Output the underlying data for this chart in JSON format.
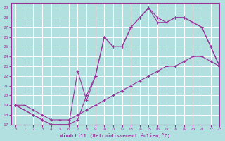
{
  "xlabel": "Windchill (Refroidissement éolien,°C)",
  "bg_color": "#b2e0e0",
  "grid_color": "#ffffff",
  "line_color": "#993399",
  "xlim": [
    -0.5,
    23
  ],
  "ylim": [
    17,
    29.5
  ],
  "xticks": [
    0,
    1,
    2,
    3,
    4,
    5,
    6,
    7,
    8,
    9,
    10,
    11,
    12,
    13,
    14,
    15,
    16,
    17,
    18,
    19,
    20,
    21,
    22,
    23
  ],
  "yticks": [
    17,
    18,
    19,
    20,
    21,
    22,
    23,
    24,
    25,
    26,
    27,
    28,
    29
  ],
  "line1_x": [
    0,
    1,
    2,
    3,
    4,
    5,
    6,
    7,
    8,
    9,
    10,
    11,
    12,
    13,
    14,
    15,
    16,
    17,
    18,
    19,
    20,
    21,
    22,
    23
  ],
  "line1_y": [
    19,
    19,
    18.5,
    18,
    17.5,
    17.5,
    17.5,
    18,
    18.5,
    19,
    19.5,
    20,
    20.5,
    21,
    21.5,
    22,
    22.5,
    23,
    23,
    23.5,
    24,
    24,
    23.5,
    23
  ],
  "line2_x": [
    0,
    2,
    3,
    4,
    5,
    6,
    7,
    8,
    9,
    10,
    11,
    12,
    13,
    14,
    15,
    16,
    17,
    18,
    19,
    20,
    21,
    22,
    23
  ],
  "line2_y": [
    19,
    18,
    17.5,
    17,
    17,
    17,
    22.5,
    19.5,
    22,
    26,
    25,
    25,
    27,
    28,
    29,
    28,
    27.5,
    28,
    28,
    27.5,
    27,
    25,
    23
  ],
  "line3_x": [
    0,
    2,
    3,
    4,
    5,
    6,
    7,
    8,
    9,
    10,
    11,
    12,
    13,
    14,
    15,
    16,
    17,
    18,
    19,
    20,
    21,
    22,
    23
  ],
  "line3_y": [
    19,
    18,
    17.5,
    17,
    17,
    17,
    17.5,
    20,
    22,
    26,
    25,
    25,
    27,
    28,
    29,
    27.5,
    27.5,
    28,
    28,
    27.5,
    27,
    25,
    23
  ],
  "marker": "+"
}
